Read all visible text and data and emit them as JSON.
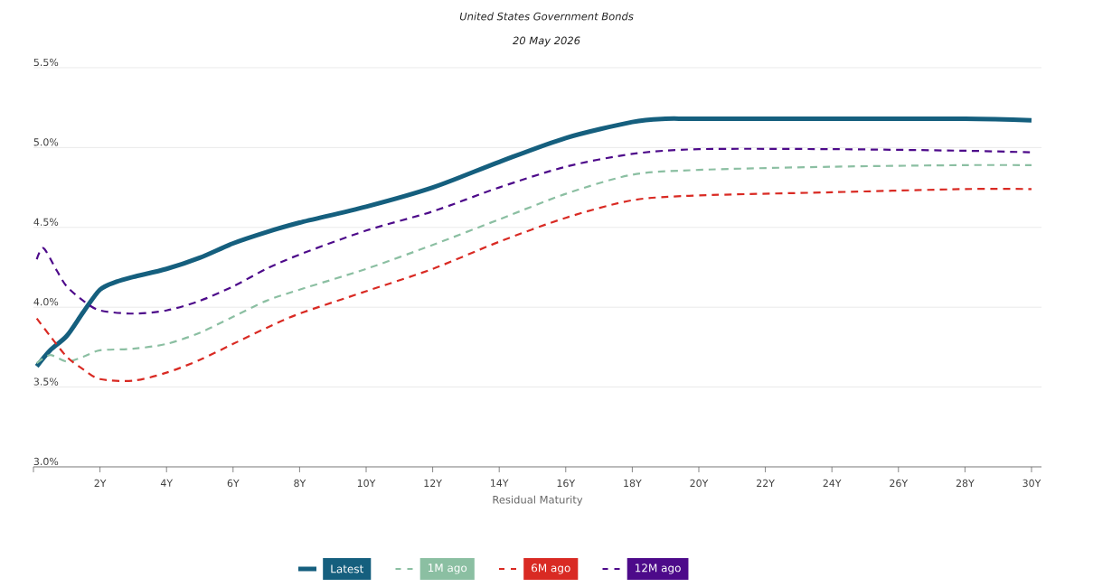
{
  "chart_data": {
    "type": "line",
    "title": "United States Government Bonds",
    "subtitle": "20 May 2026",
    "xlabel": "Residual Maturity",
    "xlim": [
      0,
      30.3
    ],
    "xticks": [
      {
        "value": 0,
        "label": null
      },
      {
        "value": 2,
        "label": "2Y"
      },
      {
        "value": 4,
        "label": "4Y"
      },
      {
        "value": 6,
        "label": "6Y"
      },
      {
        "value": 8,
        "label": "8Y"
      },
      {
        "value": 10,
        "label": "10Y"
      },
      {
        "value": 12,
        "label": "12Y"
      },
      {
        "value": 14,
        "label": "14Y"
      },
      {
        "value": 16,
        "label": "16Y"
      },
      {
        "value": 18,
        "label": "18Y"
      },
      {
        "value": 20,
        "label": "20Y"
      },
      {
        "value": 22,
        "label": "22Y"
      },
      {
        "value": 24,
        "label": "24Y"
      },
      {
        "value": 26,
        "label": "26Y"
      },
      {
        "value": 28,
        "label": "28Y"
      },
      {
        "value": 30,
        "label": "30Y"
      }
    ],
    "ylim": [
      3.0,
      5.5
    ],
    "yticks": [
      {
        "value": 3.0,
        "label": "3.0%"
      },
      {
        "value": 3.5,
        "label": "3.5%"
      },
      {
        "value": 4.0,
        "label": "4.0%"
      },
      {
        "value": 4.5,
        "label": "4.5%"
      },
      {
        "value": 5.0,
        "label": "5.0%"
      },
      {
        "value": 5.5,
        "label": "5.5%"
      }
    ],
    "grid": "y",
    "legend": "bottom",
    "series": [
      {
        "name": "Latest",
        "color": "#155f7e",
        "line_style": "solid",
        "x": [
          0.1,
          0.5,
          1,
          1.5,
          2,
          2.5,
          3,
          4,
          5,
          6,
          7,
          8,
          10,
          12,
          14,
          16,
          18,
          19,
          20,
          24,
          28,
          30
        ],
        "values": [
          3.63,
          3.73,
          3.82,
          3.97,
          4.11,
          4.16,
          4.19,
          4.24,
          4.31,
          4.4,
          4.47,
          4.53,
          4.63,
          4.75,
          4.91,
          5.06,
          5.16,
          5.18,
          5.18,
          5.18,
          5.18,
          5.17
        ]
      },
      {
        "name": "1M ago",
        "color": "#8bbfa2",
        "line_style": "dashed",
        "x": [
          0.1,
          0.5,
          1,
          1.5,
          2,
          3,
          4,
          5,
          6,
          7,
          8,
          10,
          12,
          14,
          16,
          18,
          20,
          24,
          28,
          30
        ],
        "values": [
          3.65,
          3.7,
          3.66,
          3.69,
          3.73,
          3.74,
          3.77,
          3.84,
          3.94,
          4.04,
          4.11,
          4.24,
          4.39,
          4.55,
          4.71,
          4.83,
          4.86,
          4.88,
          4.89,
          4.89
        ]
      },
      {
        "name": "6M ago",
        "color": "#d92a23",
        "line_style": "dashed",
        "x": [
          0.1,
          0.5,
          1,
          1.5,
          2,
          3,
          4,
          5,
          6,
          7,
          8,
          10,
          12,
          14,
          16,
          18,
          20,
          24,
          28,
          30
        ],
        "values": [
          3.93,
          3.82,
          3.69,
          3.61,
          3.55,
          3.54,
          3.59,
          3.67,
          3.77,
          3.87,
          3.96,
          4.1,
          4.24,
          4.41,
          4.56,
          4.67,
          4.7,
          4.72,
          4.74,
          4.74
        ]
      },
      {
        "name": "12M ago",
        "color": "#4d0a8a",
        "line_style": "dashed",
        "x": [
          0.1,
          0.3,
          0.7,
          1,
          1.5,
          2,
          3,
          4,
          5,
          6,
          7,
          8,
          10,
          12,
          14,
          16,
          18,
          20,
          24,
          28,
          30
        ],
        "values": [
          4.3,
          4.37,
          4.23,
          4.13,
          4.04,
          3.98,
          3.96,
          3.98,
          4.04,
          4.13,
          4.24,
          4.33,
          4.48,
          4.6,
          4.75,
          4.88,
          4.96,
          4.99,
          4.99,
          4.98,
          4.97
        ]
      }
    ]
  }
}
